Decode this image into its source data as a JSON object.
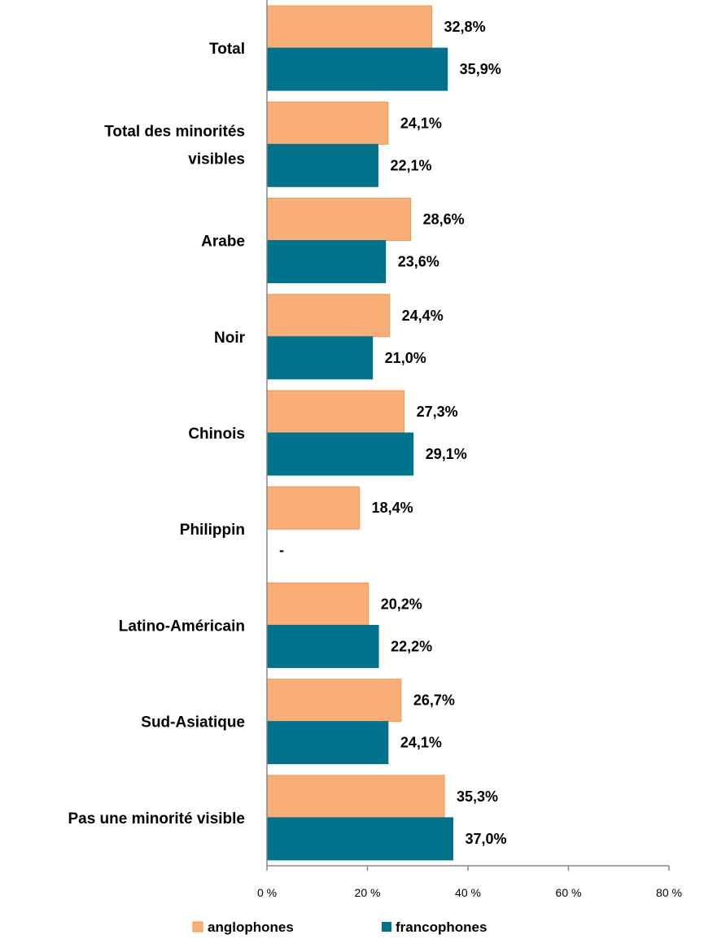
{
  "chart_data": {
    "type": "bar",
    "orientation": "horizontal",
    "categories": [
      [
        "Total"
      ],
      [
        "Total des minorités",
        "visibles"
      ],
      [
        "Arabe"
      ],
      [
        "Noir"
      ],
      [
        "Chinois"
      ],
      [
        "Philippin"
      ],
      [
        "Latino-Américain"
      ],
      [
        "Sud-Asiatique"
      ],
      [
        "Pas une minorité visible"
      ]
    ],
    "series": [
      {
        "name": "anglophones",
        "color": "#F9AE78",
        "border": "#F79646",
        "values": [
          32.8,
          24.1,
          28.6,
          24.4,
          27.3,
          18.4,
          20.2,
          26.7,
          35.3
        ],
        "labels": [
          "32,8%",
          "24,1%",
          "28,6%",
          "24,4%",
          "27,3%",
          "18,4%",
          "20,2%",
          "26,7%",
          "35,3%"
        ]
      },
      {
        "name": "francophones",
        "color": "#00728C",
        "border": "#00728C",
        "values": [
          35.9,
          22.1,
          23.6,
          21.0,
          29.1,
          null,
          22.2,
          24.1,
          37.0
        ],
        "labels": [
          "35,9%",
          "22,1%",
          "23,6%",
          "21,0%",
          "29,1%",
          "-",
          "22,2%",
          "24,1%",
          "37,0%"
        ]
      }
    ],
    "xlim": [
      0,
      80
    ],
    "xticks": [
      "0 %",
      "20 %",
      "40 %",
      "60 %",
      "80 %"
    ],
    "xtick_values": [
      0,
      20,
      40,
      60,
      80
    ],
    "legend_position": "bottom",
    "grid": false
  }
}
